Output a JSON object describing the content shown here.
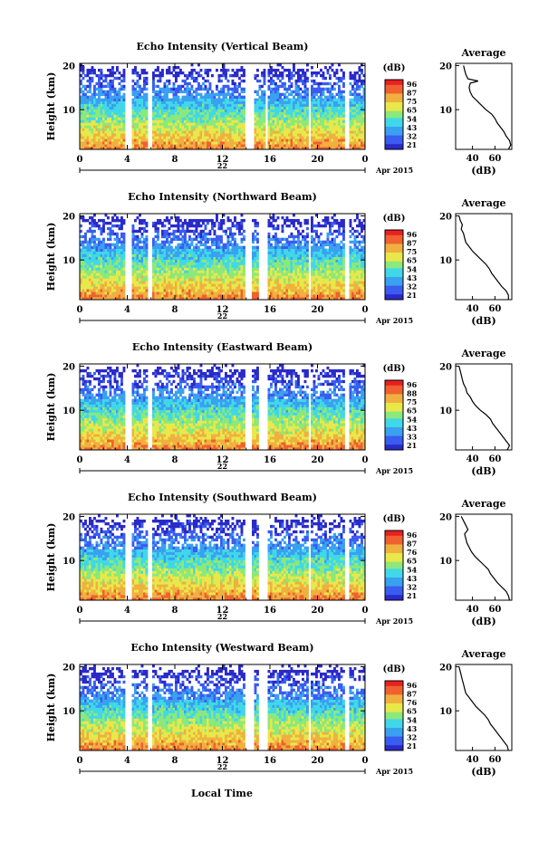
{
  "figure": {
    "xlabel": "Local Time",
    "ylabel": "Height (km)",
    "date_label": "Apr 2015",
    "day_label": "22",
    "cbar_unit": "(dB)",
    "avg_title": "Average",
    "avg_xlabel": "(dB)"
  },
  "colors": {
    "scale": [
      "#2a2ac8",
      "#3a5cf0",
      "#3aa0f0",
      "#40d8e8",
      "#8ce87a",
      "#e8e84a",
      "#f0b040",
      "#f06030",
      "#e82020"
    ],
    "frame": "#000000"
  },
  "chart_data": [
    {
      "type": "heatmap",
      "title": "Echo Intensity (Vertical Beam)",
      "x_ticks": [
        "0",
        "4",
        "8",
        "12",
        "16",
        "20",
        "0"
      ],
      "y_ticks": [
        "20",
        "10"
      ],
      "ylim": [
        1,
        20.5
      ],
      "xlim": [
        0,
        24
      ],
      "gaps_hours": [
        [
          3.8,
          4.4
        ],
        [
          5.8,
          6.1
        ],
        [
          14.0,
          14.7
        ],
        [
          15.6,
          15.9
        ],
        [
          19.2,
          19.5
        ],
        [
          22.3,
          22.6
        ]
      ],
      "colorbar_ticks": [
        "96",
        "87",
        "75",
        "65",
        "54",
        "43",
        "32",
        "21"
      ],
      "average": {
        "x_ticks": [
          "40",
          "60"
        ],
        "y_ticks": [
          "20",
          "10"
        ],
        "profile": [
          [
            72,
            1
          ],
          [
            74,
            2
          ],
          [
            73,
            3
          ],
          [
            70,
            4
          ],
          [
            68,
            5
          ],
          [
            65,
            6
          ],
          [
            62,
            7
          ],
          [
            60,
            8
          ],
          [
            57,
            9
          ],
          [
            52,
            10
          ],
          [
            48,
            11
          ],
          [
            44,
            12
          ],
          [
            40,
            13
          ],
          [
            38,
            14
          ],
          [
            37,
            15
          ],
          [
            38,
            16
          ],
          [
            45,
            16.5
          ],
          [
            36,
            17
          ],
          [
            34,
            18
          ],
          [
            33,
            19
          ],
          [
            32,
            20
          ]
        ]
      }
    },
    {
      "type": "heatmap",
      "title": "Echo Intensity (Northward Beam)",
      "x_ticks": [
        "0",
        "4",
        "8",
        "12",
        "16",
        "20",
        "0"
      ],
      "y_ticks": [
        "20",
        "10"
      ],
      "ylim": [
        1,
        20.5
      ],
      "xlim": [
        0,
        24
      ],
      "gaps_hours": [
        [
          3.8,
          4.4
        ],
        [
          5.8,
          6.1
        ],
        [
          14.0,
          14.5
        ],
        [
          15.1,
          15.9
        ],
        [
          19.2,
          19.5
        ],
        [
          22.3,
          22.6
        ]
      ],
      "colorbar_ticks": [
        "96",
        "87",
        "75",
        "65",
        "54",
        "43",
        "32",
        "21"
      ],
      "average": {
        "x_ticks": [
          "40",
          "60"
        ],
        "y_ticks": [
          "20",
          "10"
        ],
        "profile": [
          [
            72,
            1
          ],
          [
            72,
            2
          ],
          [
            70,
            3
          ],
          [
            66,
            4
          ],
          [
            63,
            5
          ],
          [
            60,
            6
          ],
          [
            57,
            7
          ],
          [
            55,
            8
          ],
          [
            52,
            9
          ],
          [
            48,
            10
          ],
          [
            44,
            11
          ],
          [
            40,
            12
          ],
          [
            37,
            13
          ],
          [
            34,
            14
          ],
          [
            33,
            15
          ],
          [
            32,
            16
          ],
          [
            30,
            17
          ],
          [
            31,
            18
          ],
          [
            29,
            19
          ],
          [
            28,
            20
          ]
        ]
      }
    },
    {
      "type": "heatmap",
      "title": "Echo Intensity (Eastward Beam)",
      "x_ticks": [
        "0",
        "4",
        "8",
        "12",
        "16",
        "20",
        "0"
      ],
      "y_ticks": [
        "20",
        "10"
      ],
      "ylim": [
        1,
        20.5
      ],
      "xlim": [
        0,
        24
      ],
      "gaps_hours": [
        [
          3.8,
          4.4
        ],
        [
          5.8,
          6.1
        ],
        [
          14.0,
          14.5
        ],
        [
          15.1,
          15.8
        ],
        [
          19.2,
          19.5
        ],
        [
          22.3,
          22.6
        ]
      ],
      "colorbar_ticks": [
        "96",
        "88",
        "75",
        "65",
        "54",
        "43",
        "33",
        "21"
      ],
      "average": {
        "x_ticks": [
          "40",
          "60"
        ],
        "y_ticks": [
          "20",
          "10"
        ],
        "profile": [
          [
            71,
            1
          ],
          [
            73,
            2
          ],
          [
            70,
            3
          ],
          [
            67,
            4
          ],
          [
            64,
            5
          ],
          [
            61,
            6
          ],
          [
            58,
            7
          ],
          [
            56,
            8
          ],
          [
            52,
            9
          ],
          [
            47,
            10
          ],
          [
            43,
            11
          ],
          [
            40,
            12
          ],
          [
            38,
            13
          ],
          [
            35,
            14
          ],
          [
            34,
            15
          ],
          [
            32,
            16
          ],
          [
            31,
            17
          ],
          [
            30,
            18
          ],
          [
            29,
            19
          ],
          [
            28,
            20
          ]
        ]
      }
    },
    {
      "type": "heatmap",
      "title": "Echo Intensity (Southward Beam)",
      "x_ticks": [
        "0",
        "4",
        "8",
        "12",
        "16",
        "20",
        "0"
      ],
      "y_ticks": [
        "20",
        "10"
      ],
      "ylim": [
        1,
        20.5
      ],
      "xlim": [
        0,
        24
      ],
      "gaps_hours": [
        [
          3.8,
          4.4
        ],
        [
          5.8,
          6.1
        ],
        [
          14.0,
          14.5
        ],
        [
          15.1,
          15.8
        ],
        [
          19.2,
          19.5
        ],
        [
          22.3,
          22.6
        ]
      ],
      "colorbar_ticks": [
        "96",
        "87",
        "76",
        "65",
        "54",
        "43",
        "32",
        "21"
      ],
      "average": {
        "x_ticks": [
          "40",
          "60"
        ],
        "y_ticks": [
          "20",
          "10"
        ],
        "profile": [
          [
            73,
            1
          ],
          [
            72,
            2
          ],
          [
            70,
            3
          ],
          [
            66,
            4
          ],
          [
            62,
            5
          ],
          [
            59,
            6
          ],
          [
            56,
            7
          ],
          [
            54,
            8
          ],
          [
            50,
            9
          ],
          [
            46,
            10
          ],
          [
            42,
            11
          ],
          [
            39,
            12
          ],
          [
            37,
            13
          ],
          [
            35,
            14
          ],
          [
            34,
            15
          ],
          [
            33,
            16
          ],
          [
            36,
            17
          ],
          [
            34,
            18
          ],
          [
            32,
            19
          ],
          [
            30,
            20
          ]
        ]
      }
    },
    {
      "type": "heatmap",
      "title": "Echo Intensity (Westward Beam)",
      "x_ticks": [
        "0",
        "4",
        "8",
        "12",
        "16",
        "20",
        "0"
      ],
      "y_ticks": [
        "20",
        "10"
      ],
      "ylim": [
        1,
        20.5
      ],
      "xlim": [
        0,
        24
      ],
      "gaps_hours": [
        [
          3.8,
          4.4
        ],
        [
          5.8,
          6.1
        ],
        [
          14.0,
          14.6
        ],
        [
          15.0,
          15.8
        ],
        [
          19.2,
          19.5
        ],
        [
          22.3,
          22.6
        ]
      ],
      "colorbar_ticks": [
        "96",
        "87",
        "76",
        "65",
        "54",
        "43",
        "32",
        "21"
      ],
      "average": {
        "x_ticks": [
          "40",
          "60"
        ],
        "y_ticks": [
          "20",
          "10"
        ],
        "profile": [
          [
            72,
            1
          ],
          [
            71,
            2
          ],
          [
            68,
            3
          ],
          [
            65,
            4
          ],
          [
            62,
            5
          ],
          [
            59,
            6
          ],
          [
            56,
            7
          ],
          [
            54,
            8
          ],
          [
            51,
            9
          ],
          [
            47,
            10
          ],
          [
            43,
            11
          ],
          [
            40,
            12
          ],
          [
            37,
            13
          ],
          [
            34,
            14
          ],
          [
            33,
            15
          ],
          [
            32,
            16
          ],
          [
            31,
            17
          ],
          [
            30,
            18
          ],
          [
            29,
            19
          ],
          [
            28,
            20
          ]
        ]
      }
    }
  ]
}
